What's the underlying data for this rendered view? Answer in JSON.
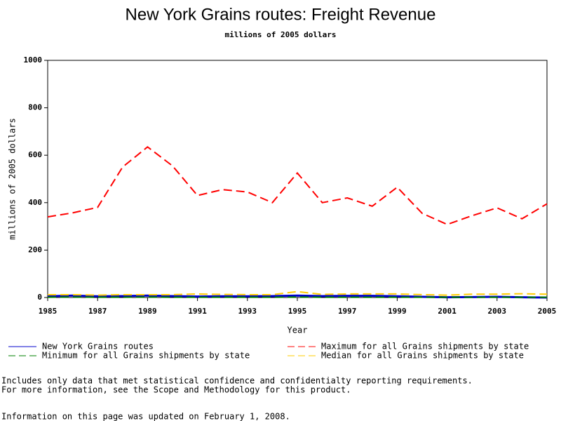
{
  "chart_data": {
    "type": "line",
    "title": "New York Grains routes: Freight Revenue",
    "subtitle": "millions of 2005 dollars",
    "x_label": "Year",
    "y_label": "millions of 2005 dollars",
    "x": [
      1985,
      1986,
      1987,
      1988,
      1989,
      1990,
      1991,
      1992,
      1993,
      1994,
      1995,
      1996,
      1997,
      1998,
      1999,
      2000,
      2001,
      2002,
      2003,
      2004,
      2005
    ],
    "series": [
      {
        "name": "New York Grains routes",
        "color": "#0000cc",
        "dashed": false,
        "values": [
          5,
          8,
          5,
          6,
          8,
          6,
          4,
          5,
          5,
          6,
          8,
          6,
          7,
          7,
          5,
          3,
          1,
          2,
          3,
          1,
          0
        ]
      },
      {
        "name": "Maximum for all Grains shipments by state",
        "color": "#ff0000",
        "dashed": true,
        "values": [
          340,
          357,
          380,
          550,
          635,
          555,
          430,
          455,
          445,
          400,
          525,
          400,
          420,
          385,
          465,
          355,
          308,
          345,
          378,
          332,
          395
        ]
      },
      {
        "name": "Minimum for all Grains shipments by state",
        "color": "#008000",
        "dashed": true,
        "values": [
          1,
          2,
          1,
          1,
          2,
          1,
          1,
          1,
          1,
          1,
          2,
          1,
          1,
          1,
          1,
          1,
          1,
          1,
          1,
          1,
          1
        ]
      },
      {
        "name": "Median for all Grains shipments by state",
        "color": "#ffcc00",
        "dashed": true,
        "values": [
          12,
          12,
          10,
          12,
          12,
          12,
          15,
          13,
          12,
          12,
          25,
          13,
          15,
          15,
          15,
          12,
          10,
          14,
          14,
          16,
          14
        ]
      }
    ],
    "xlim": [
      1985,
      2005
    ],
    "xticks": [
      1985,
      1987,
      1989,
      1991,
      1993,
      1995,
      1997,
      1999,
      2001,
      2003,
      2005
    ],
    "ylim": [
      0,
      1000
    ],
    "yticks": [
      0,
      200,
      400,
      600,
      800,
      1000
    ],
    "notes": [
      "Includes only data that met statistical confidence and confidentialty reporting requirements.",
      "For more information, see the Scope and Methodology for this product."
    ],
    "updated": "Information on this page was updated on February 1, 2008."
  }
}
